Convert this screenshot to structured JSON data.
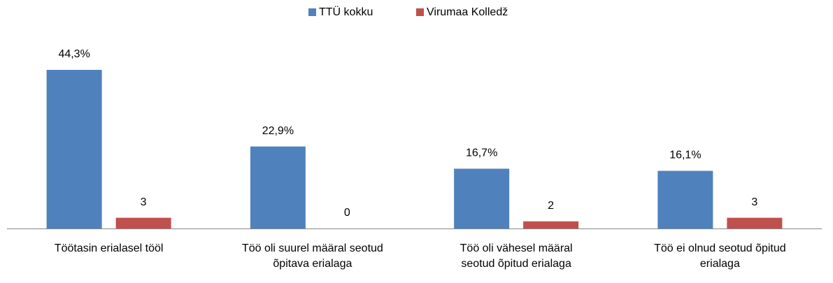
{
  "chart_data": {
    "type": "bar",
    "categories": [
      "Töötasin erialasel tööl",
      "Töö oli suurel määral seotud õpitava erialaga",
      "Töö oli vähesel määral seotud õpitud erialaga",
      "Töö ei olnud seotud õpitud erialaga"
    ],
    "series": [
      {
        "name": "TTÜ kokku",
        "color": "#4f81bd",
        "values": [
          44.3,
          22.9,
          16.7,
          16.1
        ],
        "value_labels": [
          "44,3%",
          "22,9%",
          "16,7%",
          "16,1%"
        ]
      },
      {
        "name": "Virumaa Kolledž",
        "color": "#c0504d",
        "values": [
          3,
          0,
          2,
          3
        ]
      }
    ],
    "legend": "top"
  }
}
